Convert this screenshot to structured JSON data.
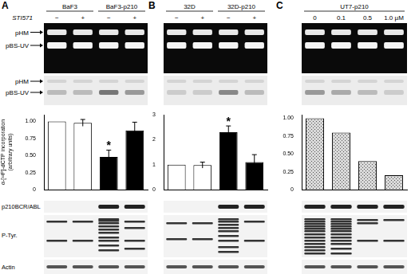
{
  "panels": [
    {
      "label": "A",
      "groups": [
        "BaF3",
        "BaF3-p210"
      ],
      "treatment": "STI571",
      "treatment_marks": [
        "−",
        "+",
        "−",
        "+"
      ],
      "gel_labels": [
        "pHM",
        "pBS-UV"
      ],
      "blot_labels": [
        "p210BCR/ABL",
        "P-Tyr.",
        "Actin"
      ]
    },
    {
      "label": "B",
      "groups": [
        "32D",
        "32D-p210"
      ],
      "treatment_marks": [
        "−",
        "+",
        "−",
        "+"
      ]
    },
    {
      "label": "C",
      "groups": [
        "UT7-p210"
      ],
      "doses": [
        "0",
        "0.1",
        "0.5",
        "1.0 µM"
      ]
    }
  ],
  "chart_data": [
    {
      "type": "bar",
      "ylabel": "α-[³²P]-dCTP incorporation (arbitrary units)",
      "categories": [
        null,
        null,
        null,
        null
      ],
      "values": [
        1.0,
        0.98,
        0.48,
        0.87
      ],
      "errors": [
        0,
        0.05,
        0.1,
        0.12
      ],
      "colors": [
        "#ffffff",
        "#ffffff",
        "#000000",
        "#000000"
      ],
      "ylim": [
        0,
        1.1
      ],
      "yticks": [
        0,
        0.25,
        {
          "value": 0.5,
          "label": "0.50"
        },
        0.75,
        {
          "value": 1,
          "label": "1.00"
        }
      ],
      "grid": false,
      "tick_labels": "y",
      "annotations": [
        {
          "text": "*",
          "index": 2
        }
      ]
    },
    {
      "type": "bar",
      "categories": [
        null,
        null,
        null,
        null
      ],
      "values": [
        1.0,
        0.98,
        2.3,
        1.1
      ],
      "errors": [
        0,
        0.12,
        0.25,
        0.3
      ],
      "colors": [
        "#ffffff",
        "#ffffff",
        "#000000",
        "#000000"
      ],
      "ylim": [
        0,
        3
      ],
      "yticks": [
        0,
        1,
        2,
        3
      ],
      "grid": false,
      "tick_labels": "y",
      "annotations": [
        {
          "text": "*",
          "index": 2
        }
      ]
    },
    {
      "type": "bar",
      "categories": [
        null,
        null,
        null,
        null
      ],
      "values": [
        1.0,
        0.8,
        0.4,
        0.2
      ],
      "colors": [
        "#d9d9d9",
        "#d9d9d9",
        "#d9d9d9",
        "#d9d9d9"
      ],
      "ylim": [
        0,
        1.05
      ],
      "yticks": [
        0,
        0.25,
        {
          "value": 0.5,
          "label": "0.50"
        },
        0.75,
        {
          "value": 1,
          "label": "1.00"
        }
      ],
      "grid": false,
      "tick_labels": "y"
    }
  ]
}
